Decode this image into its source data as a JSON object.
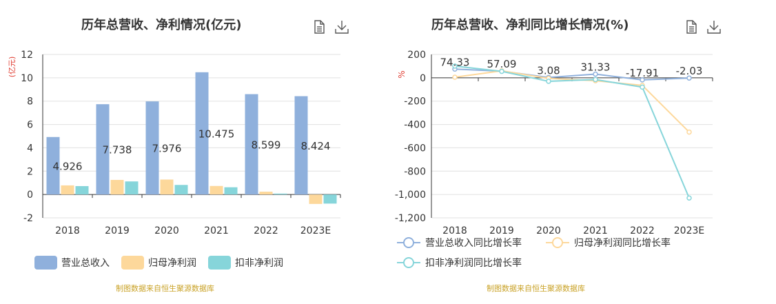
{
  "left": {
    "title": "历年总营收、净利情况(亿元)",
    "source": "制图数据来自恒生聚源数据库",
    "icons": [
      "document-icon",
      "download-icon"
    ],
    "chart_data": {
      "type": "bar",
      "title": "历年总营收、净利情况(亿元)",
      "ylabel": "(亿元)",
      "xlabel": "",
      "categories": [
        "2018",
        "2019",
        "2020",
        "2021",
        "2022",
        "2023E"
      ],
      "ylim": [
        -2,
        12
      ],
      "yticks": [
        -2,
        0,
        2,
        4,
        6,
        8,
        10,
        12
      ],
      "grid": true,
      "legend_position": "bottom-left",
      "series": [
        {
          "name": "营业总收入",
          "color": "#8fb0dc",
          "values": [
            4.926,
            7.738,
            7.976,
            10.475,
            8.599,
            8.424
          ],
          "labels": [
            "4.926",
            "7.738",
            "7.976",
            "10.475",
            "8.599",
            "8.424"
          ]
        },
        {
          "name": "归母净利润",
          "color": "#fdd89b",
          "values": [
            0.78,
            1.25,
            1.28,
            0.73,
            0.24,
            -0.81
          ]
        },
        {
          "name": "扣非净利润",
          "color": "#86d5da",
          "values": [
            0.72,
            1.12,
            0.82,
            0.62,
            0.08,
            -0.78
          ]
        }
      ]
    }
  },
  "right": {
    "title": "历年总营收、净利同比增长情况(%)",
    "source": "制图数据来自恒生聚源数据库",
    "icons": [
      "document-icon",
      "download-icon"
    ],
    "chart_data": {
      "type": "line",
      "title": "历年总营收、净利同比增长情况(%)",
      "ylabel": "%",
      "xlabel": "",
      "categories": [
        "2018",
        "2019",
        "2020",
        "2021",
        "2022",
        "2023E"
      ],
      "ylim": [
        -1200,
        200
      ],
      "yticks": [
        -1200,
        -1000,
        -800,
        -600,
        -400,
        -200,
        0,
        200
      ],
      "ytick_labels": [
        "-1,200",
        "-1,000",
        "-800",
        "-600",
        "-400",
        "-200",
        "0",
        "200"
      ],
      "grid": true,
      "legend_position": "bottom",
      "series": [
        {
          "name": "营业总收入同比增长率",
          "color": "#8fb0dc",
          "values": [
            74.33,
            57.09,
            3.08,
            31.33,
            -17.91,
            -2.03
          ],
          "labels": [
            "74.33",
            "57.09",
            "3.08",
            "31.33",
            "-17.91",
            "-2.03"
          ]
        },
        {
          "name": "归母净利润同比增长率",
          "color": "#fdd89b",
          "values": [
            5,
            60,
            -5,
            -25,
            -65,
            -465
          ]
        },
        {
          "name": "扣非净利润同比增长率",
          "color": "#86d5da",
          "values": [
            100,
            55,
            -30,
            -15,
            -80,
            -1030
          ]
        }
      ]
    }
  }
}
